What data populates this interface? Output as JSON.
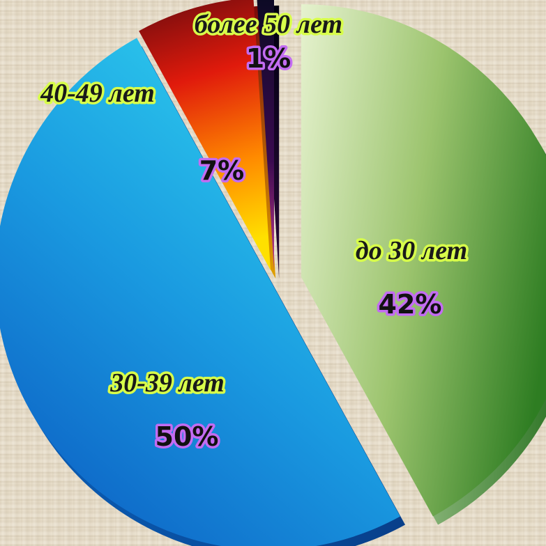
{
  "chart_data": {
    "type": "pie",
    "slices": [
      {
        "label": "до 30 лет",
        "value": 42,
        "value_label": "42%",
        "color": "#2f8a2f"
      },
      {
        "label": "30-39 лет",
        "value": 50,
        "value_label": "50%",
        "color": "#1a8ed8"
      },
      {
        "label": "40-49 лет",
        "value": 7,
        "value_label": "7%",
        "color": "#e53a10"
      },
      {
        "label": "более 50 лет",
        "value": 1,
        "value_label": "1%",
        "color": "#1a1038"
      }
    ]
  }
}
